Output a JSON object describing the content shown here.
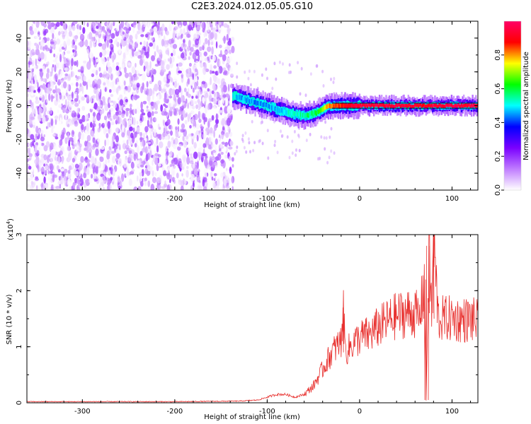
{
  "page": {
    "title": "C2E3.2024.012.05.05.G10"
  },
  "chart_data": [
    {
      "type": "heatmap",
      "xlabel": "Height of straight line (km)",
      "ylabel": "Frequency (Hz)",
      "xlim": [
        -360,
        128
      ],
      "ylim": [
        -50,
        50
      ],
      "xticks": [
        -300,
        -200,
        -100,
        0,
        100
      ],
      "xtick_labels": [
        "-300",
        "-200",
        "-100",
        "0",
        "100"
      ],
      "yticks": [
        -40,
        -20,
        0,
        20,
        40
      ],
      "ytick_labels": [
        "-40",
        "-20",
        "0",
        "20",
        "40"
      ],
      "regions": [
        {
          "name": "noise",
          "x_range": [
            -360,
            -137
          ],
          "freq_range": [
            -50,
            50
          ],
          "amplitude_range": [
            0.0,
            0.2
          ]
        },
        {
          "name": "signal",
          "x_range": [
            -137,
            128
          ]
        }
      ],
      "signal_trace": {
        "x": [
          -137,
          -120,
          -100,
          -80,
          -60,
          -45,
          -35,
          -25,
          -15,
          0,
          20,
          40,
          60,
          70,
          80,
          100,
          128
        ],
        "frequency": [
          6,
          3,
          0,
          -4,
          -6,
          -4,
          0,
          0,
          0,
          0,
          0,
          0,
          0,
          0,
          0,
          0,
          0
        ],
        "amplitude": [
          0.5,
          0.45,
          0.45,
          0.5,
          0.55,
          0.6,
          0.8,
          0.85,
          0.9,
          0.95,
          0.95,
          0.95,
          0.95,
          0.9,
          0.95,
          0.95,
          0.95
        ]
      },
      "colorbar": {
        "label": "Normalized spectral amplitude",
        "range": [
          0,
          1
        ],
        "ticks": [
          0.0,
          0.2,
          0.4,
          0.6,
          0.8
        ],
        "tick_labels": [
          "0.0",
          "0.2",
          "0.4",
          "0.6",
          "0.8"
        ],
        "colors": [
          "#ffffff",
          "#c07cff",
          "#7a00ff",
          "#0000ff",
          "#00ffff",
          "#00ff00",
          "#ffff00",
          "#ff0000",
          "#ff0066"
        ]
      },
      "noise_color": "#8a2be2",
      "grid": false
    },
    {
      "type": "line",
      "xlabel": "Height of straight line (km)",
      "ylabel": "SNR (10 * v/v)",
      "y_multiplier_label": "(x10",
      "y_multiplier_exp": "4",
      "y_multiplier_close": ")",
      "xlim": [
        -360,
        128
      ],
      "ylim": [
        0,
        3
      ],
      "xticks": [
        -300,
        -200,
        -100,
        0,
        100
      ],
      "xtick_labels": [
        "-300",
        "-200",
        "-100",
        "0",
        "100"
      ],
      "yticks": [
        0,
        1,
        2,
        3
      ],
      "ytick_labels": [
        "0",
        "1",
        "2",
        "3"
      ],
      "line_color": "#e8312f",
      "series": [
        {
          "x": [
            -360,
            -300,
            -200,
            -130,
            -110,
            -100,
            -90,
            -80,
            -70,
            -60,
            -50,
            -45,
            -40,
            -35,
            -30,
            -25,
            -20,
            -18,
            -15,
            -10,
            -5,
            0,
            5,
            10,
            20,
            30,
            40,
            50,
            60,
            65,
            70,
            72,
            75,
            78,
            80,
            85,
            90,
            100,
            110,
            120,
            128
          ],
          "y": [
            0.02,
            0.02,
            0.02,
            0.03,
            0.05,
            0.1,
            0.15,
            0.15,
            0.1,
            0.15,
            0.3,
            0.45,
            0.6,
            0.75,
            0.9,
            1.0,
            1.1,
            1.7,
            0.9,
            1.0,
            1.1,
            1.15,
            1.2,
            1.2,
            1.35,
            1.45,
            1.55,
            1.6,
            1.6,
            1.5,
            2.2,
            0.05,
            2.8,
            1.6,
            3.0,
            1.5,
            1.5,
            1.5,
            1.48,
            1.48,
            1.46
          ]
        }
      ],
      "grid": false
    }
  ]
}
